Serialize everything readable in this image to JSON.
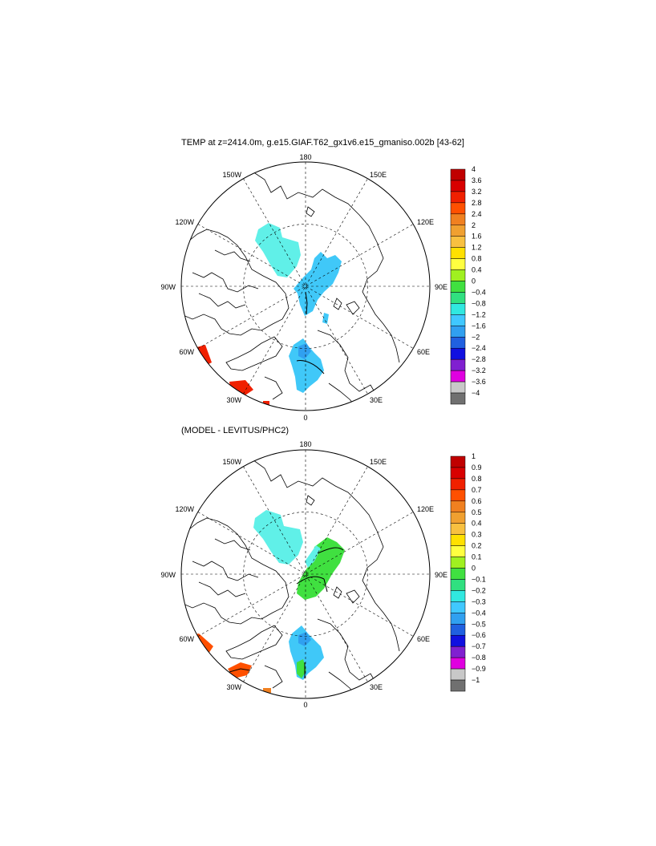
{
  "panels": [
    {
      "title": "TEMP at z=2414.0m, g.e15.GIAF.T62_gx1v6.e15_gmaniso.002b [43-62]",
      "colorbar": {
        "labels": [
          "4",
          "3.6",
          "3.2",
          "2.8",
          "2.4",
          "2",
          "1.6",
          "1.2",
          "0.8",
          "0.4",
          "0",
          "−0.4",
          "−0.8",
          "−1.2",
          "−1.6",
          "−2",
          "−2.4",
          "−2.8",
          "−3.2",
          "−3.6",
          "−4"
        ]
      }
    },
    {
      "title": "(MODEL - LEVITUS/PHC2)",
      "colorbar": {
        "labels": [
          "1",
          "0.9",
          "0.8",
          "0.7",
          "0.6",
          "0.5",
          "0.4",
          "0.3",
          "0.2",
          "0.1",
          "0",
          "−0.1",
          "−0.2",
          "−0.3",
          "−0.4",
          "−0.5",
          "−0.6",
          "−0.7",
          "−0.8",
          "−0.9",
          "−1"
        ]
      }
    }
  ],
  "longitude_labels": {
    "top": "180",
    "bottom": "0",
    "left": "90W",
    "right": "90E",
    "upper_left_1": "150W",
    "upper_left_2": "120W",
    "upper_right_1": "150E",
    "upper_right_2": "120E",
    "lower_left_1": "60W",
    "lower_left_2": "30W",
    "lower_right_1": "60E",
    "lower_right_2": "30E"
  },
  "colorbar_colors": [
    "#c00000",
    "#d80000",
    "#f02000",
    "#ff5000",
    "#f08020",
    "#f0a030",
    "#f8c040",
    "#ffe000",
    "#ffff40",
    "#a0f020",
    "#40e040",
    "#30e080",
    "#30e8e0",
    "#40c8ff",
    "#30a0f0",
    "#2060e0",
    "#1010e0",
    "#8020d0",
    "#e000e0",
    "#c8c8c8",
    "#707070"
  ],
  "fill_colors": {
    "cyan": "#60f0e8",
    "light_blue": "#40c8f8",
    "blue": "#30a0f0",
    "green": "#40e040",
    "red": "#f02000"
  }
}
